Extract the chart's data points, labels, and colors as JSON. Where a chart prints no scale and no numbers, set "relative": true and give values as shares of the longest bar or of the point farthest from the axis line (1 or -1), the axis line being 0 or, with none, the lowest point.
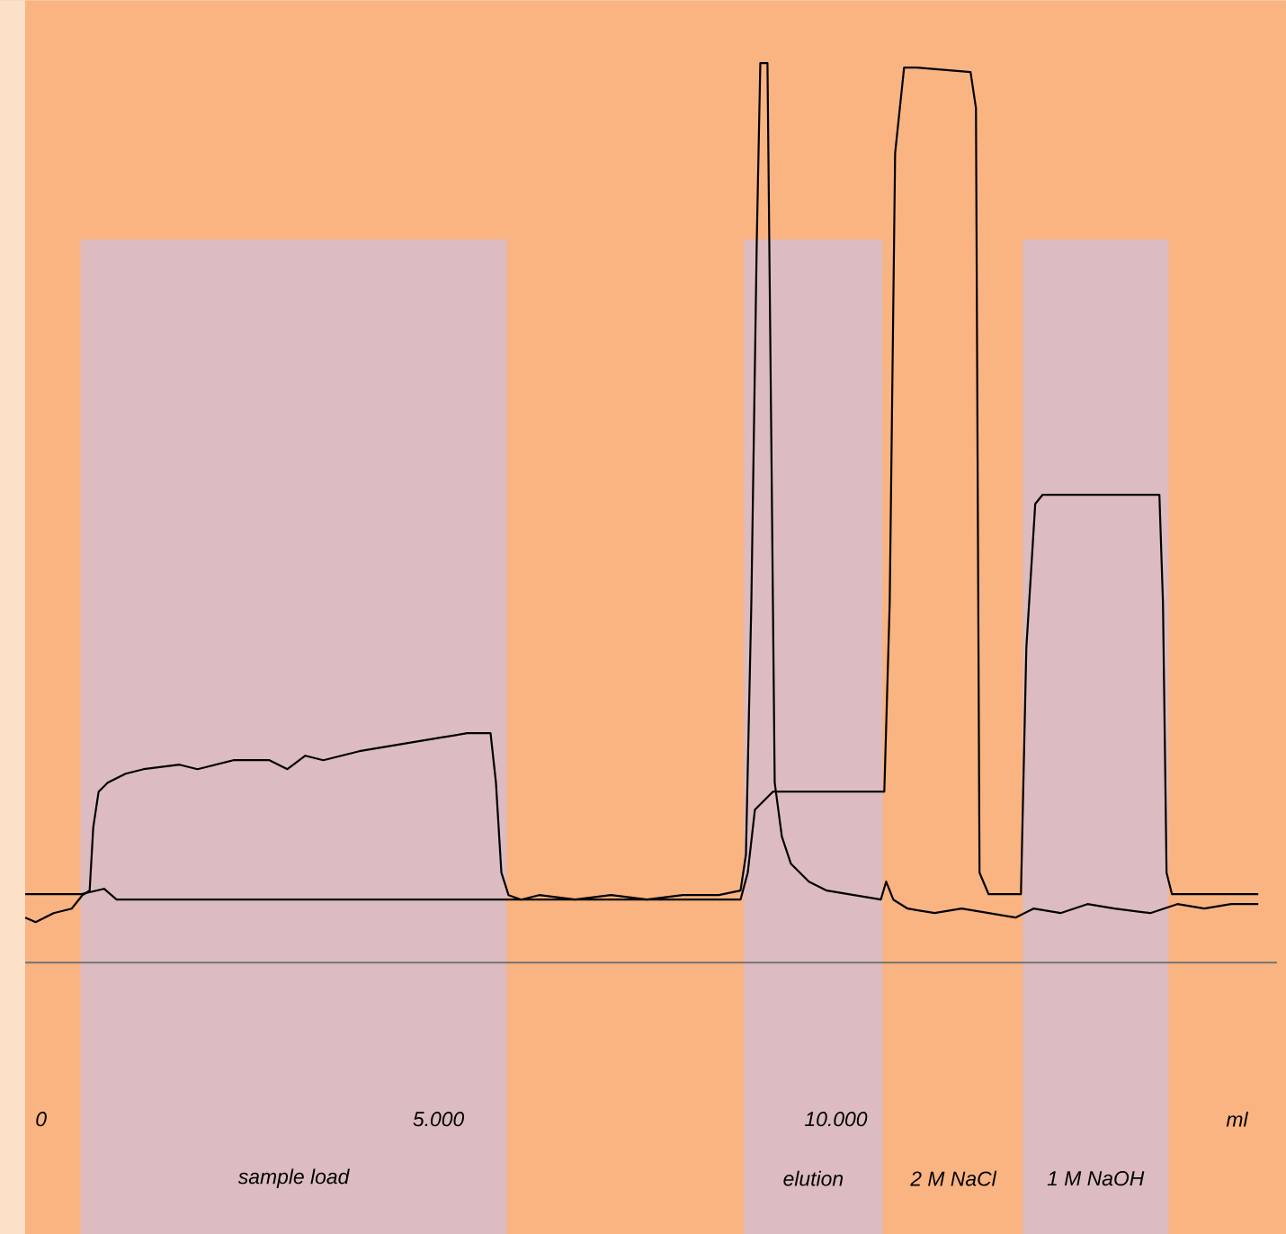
{
  "chart_data": {
    "type": "line",
    "relative": true,
    "xlabel": "ml",
    "xlim": [
      -200,
      15550
    ],
    "xticks": [
      {
        "value": 0,
        "label": "0"
      },
      {
        "value": 5000,
        "label": "5.000"
      },
      {
        "value": 10000,
        "label": "10.000"
      }
    ],
    "series": [
      {
        "color": "#000000",
        "x": [
          -200,
          -68,
          158,
          385,
          520,
          611,
          656,
          724,
          837,
          1063,
          1290,
          1742,
          1968,
          2420,
          2873,
          3099,
          3325,
          3551,
          4004,
          4343,
          4682,
          5022,
          5361,
          5655,
          5723,
          5791,
          5881,
          6040,
          6266,
          6718,
          7171,
          7623,
          8075,
          8528,
          8800,
          8868,
          8936,
          9004,
          9049,
          9139,
          9185,
          9230,
          9320,
          9433,
          9660,
          9886,
          10225,
          10565,
          10632,
          10722,
          10903,
          11242,
          11581,
          11921,
          12260,
          12486,
          12826,
          13165,
          13504,
          13956,
          14296,
          14635,
          14974,
          15314
        ],
        "values": [
          0.05,
          0.045,
          0.055,
          0.06,
          0.075,
          0.08,
          0.15,
          0.19,
          0.2,
          0.21,
          0.215,
          0.22,
          0.215,
          0.225,
          0.225,
          0.215,
          0.23,
          0.225,
          0.235,
          0.24,
          0.245,
          0.25,
          0.255,
          0.255,
          0.2,
          0.1,
          0.075,
          0.07,
          0.075,
          0.07,
          0.075,
          0.07,
          0.075,
          0.075,
          0.08,
          0.12,
          0.4,
          0.8,
          1.0,
          1.0,
          0.6,
          0.2,
          0.14,
          0.11,
          0.09,
          0.08,
          0.075,
          0.07,
          0.09,
          0.07,
          0.06,
          0.055,
          0.06,
          0.055,
          0.05,
          0.06,
          0.055,
          0.065,
          0.06,
          0.055,
          0.065,
          0.06,
          0.065,
          0.065
        ]
      },
      {
        "color": "#000000",
        "x": [
          -200,
          498,
          792,
          950,
          4004,
          8800,
          8891,
          8981,
          9094,
          9207,
          10609,
          10677,
          10745,
          10858,
          11016,
          11694,
          11762,
          11807,
          11921,
          12328,
          12396,
          12508,
          12599,
          14070,
          14115,
          14160,
          14228,
          15314
        ],
        "values": [
          0.076,
          0.076,
          0.082,
          0.07,
          0.07,
          0.07,
          0.1,
          0.17,
          0.18,
          0.19,
          0.19,
          0.4,
          0.9,
          0.995,
          0.995,
          0.99,
          0.95,
          0.1,
          0.076,
          0.076,
          0.35,
          0.51,
          0.52,
          0.52,
          0.4,
          0.1,
          0.076,
          0.076
        ]
      }
    ],
    "bands": [
      {
        "axis": "x",
        "from": 498,
        "to": 5859,
        "label": "sample load",
        "color": "#dcbcc0"
      },
      {
        "axis": "x",
        "from": 8845,
        "to": 10586,
        "label": "elution",
        "color": "#dcbcc0"
      },
      {
        "axis": "x",
        "from": 12351,
        "to": 14183,
        "label": "1 M NaOH",
        "color": "#dcbcc0"
      }
    ],
    "annotations": [
      "2 M NaCl"
    ]
  }
}
